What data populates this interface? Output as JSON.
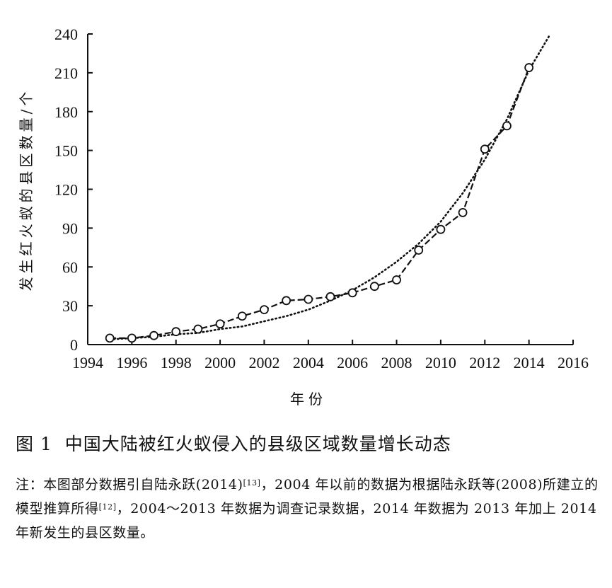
{
  "chart_data": {
    "type": "line",
    "xlabel": "年份",
    "ylabel": "发生红火蚁的县区数量/个",
    "xlim": [
      1994,
      2016
    ],
    "ylim": [
      0,
      240
    ],
    "x_ticks": [
      1994,
      1996,
      1998,
      2000,
      2002,
      2004,
      2006,
      2008,
      2010,
      2012,
      2014,
      2016
    ],
    "y_ticks": [
      0,
      30,
      60,
      90,
      120,
      150,
      180,
      210,
      240
    ],
    "grid": false,
    "series": [
      {
        "style": "dashed-with-circle-markers",
        "x": [
          1995,
          1996,
          1997,
          1998,
          1999,
          2000,
          2001,
          2002,
          2003,
          2004,
          2005,
          2006,
          2007,
          2008,
          2009,
          2010,
          2011,
          2012,
          2013,
          2014
        ],
        "y": [
          5,
          5,
          7,
          10,
          12,
          16,
          22,
          27,
          34,
          35,
          37,
          40,
          45,
          50,
          73,
          89,
          102,
          151,
          169,
          214
        ]
      },
      {
        "style": "dotted-trend",
        "x": [
          1995,
          1996,
          1997,
          1998,
          1999,
          2000,
          2001,
          2002,
          2003,
          2004,
          2005,
          2006,
          2007,
          2008,
          2009,
          2010,
          2011,
          2012,
          2013,
          2014,
          2014.9
        ],
        "y": [
          4,
          5,
          6,
          8,
          9,
          12,
          14,
          18,
          22,
          27,
          34,
          42,
          52,
          64,
          78,
          95,
          117,
          143,
          174,
          212,
          238
        ]
      }
    ]
  },
  "caption": {
    "figure_label": "图 1",
    "title": "中国大陆被红火蚁侵入的县级区域数量增长动态"
  },
  "note": {
    "part1": "注：本图部分数据引自陆永跃(2014)",
    "ref1": "[13]",
    "part2": "，2004 年以前的数据为根据陆永跃等(2008)所建立的模型推算所得",
    "ref2": "[12]",
    "part3": "，2004～2013 年数据为调查记录数据，2014 年数据为 2013 年加上 2014 年新发生的县区数量。"
  }
}
